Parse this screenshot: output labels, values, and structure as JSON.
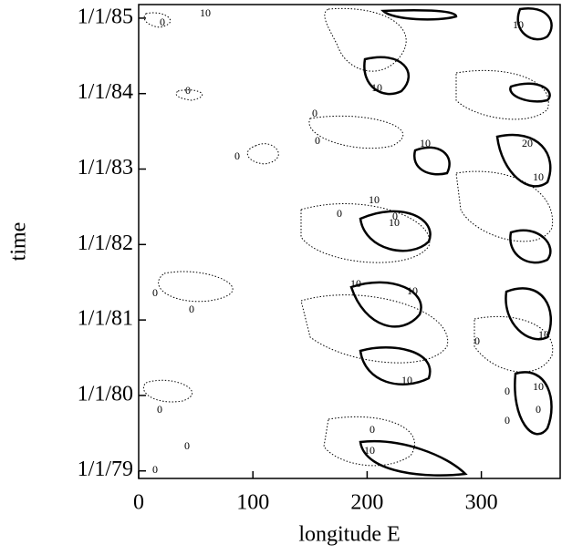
{
  "chart_data": {
    "type": "contour",
    "xlabel": "longitude E",
    "ylabel": "time",
    "xlim": [
      0,
      369
    ],
    "xticks": [
      0,
      100,
      200,
      300
    ],
    "ylim": [
      1978.9,
      1985.18
    ],
    "yticks": [
      {
        "value": 1979,
        "label": "1/1/79"
      },
      {
        "value": 1980,
        "label": "1/1/80"
      },
      {
        "value": 1981,
        "label": "1/1/81"
      },
      {
        "value": 1982,
        "label": "1/1/82"
      },
      {
        "value": 1983,
        "label": "1/1/83"
      },
      {
        "value": 1984,
        "label": "1/1/84"
      },
      {
        "value": 1985,
        "label": "1/1/85"
      }
    ],
    "contour_levels": [
      0,
      10,
      20
    ]
  }
}
